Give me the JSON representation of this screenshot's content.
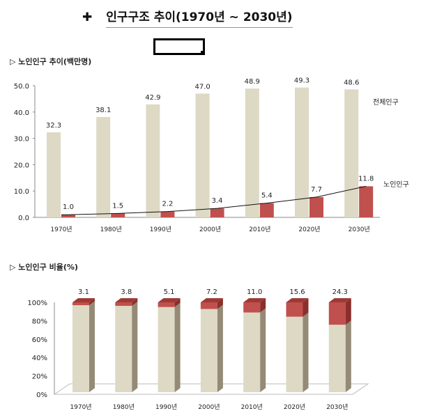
{
  "header": {
    "icon": "cross-bullet-icon",
    "title": "인구구조 추이(1970년 ~ 2030년)"
  },
  "colors": {
    "total": "#ddd9c4",
    "elderly": "#c0504d",
    "elderly_dark": "#8b2f2c",
    "side": "#948a76",
    "axis": "#888888"
  },
  "chart_data": [
    {
      "type": "bar",
      "title": "▷ 노인인구 추이(백만명)",
      "categories": [
        "1970년",
        "1980년",
        "1990년",
        "2000년",
        "2010년",
        "2020년",
        "2030년"
      ],
      "series": [
        {
          "name": "전체인구",
          "values": [
            32.3,
            38.1,
            42.9,
            47.0,
            48.9,
            49.3,
            48.6
          ]
        },
        {
          "name": "노인인구",
          "values": [
            1.0,
            1.5,
            2.2,
            3.4,
            5.4,
            7.7,
            11.8
          ]
        }
      ],
      "trendline": "노인인구",
      "ylim": [
        0,
        50
      ],
      "yticks": [
        "0.0",
        "10.0",
        "20.0",
        "30.0",
        "40.0",
        "50.0"
      ],
      "grid": false,
      "legend": "right"
    },
    {
      "type": "bar",
      "stacked": "percent",
      "three_d": true,
      "title": "▷ 노인인구 비율(%)",
      "categories": [
        "1970년",
        "1980년",
        "1990년",
        "2000년",
        "2010년",
        "2020년",
        "2030년"
      ],
      "values": [
        3.1,
        3.8,
        5.1,
        7.2,
        11.0,
        15.6,
        24.3
      ],
      "ylim": [
        0,
        100
      ],
      "yticks": [
        "0%",
        "20%",
        "40%",
        "60%",
        "80%",
        "100%"
      ],
      "grid": false
    }
  ]
}
